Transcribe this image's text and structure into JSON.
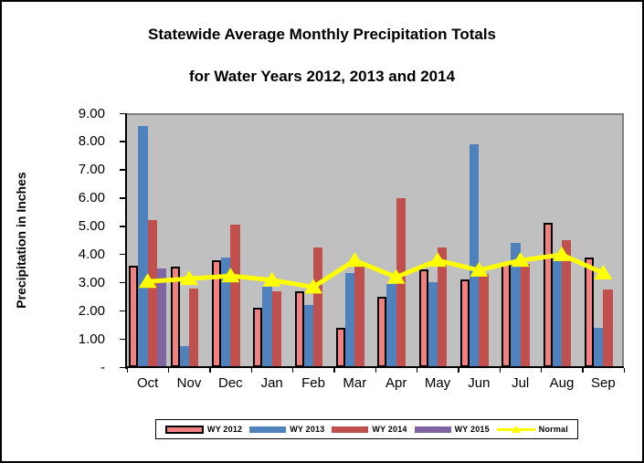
{
  "title": {
    "line1": "Statewide Average Monthly Precipitation Totals",
    "line2": "for Water Years 2012, 2013 and 2014"
  },
  "y_axis": {
    "title": "Precipitation in Inches",
    "tick_labels": [
      "9.00",
      "8.00",
      "7.00",
      "6.00",
      "5.00",
      "4.00",
      "3.00",
      "2.00",
      "1.00",
      "-"
    ]
  },
  "chart_data": {
    "type": "bar",
    "title": "Statewide Average Monthly Precipitation Totals for Water Years 2012, 2013 and 2014",
    "ylabel": "Precipitation in Inches",
    "xlabel": "",
    "ylim": [
      0,
      9
    ],
    "ytick_step": 1,
    "grid": false,
    "plot_bg": "#C0C0C0",
    "legend_position": "bottom",
    "categories": [
      "Oct",
      "Nov",
      "Dec",
      "Jan",
      "Feb",
      "Mar",
      "Apr",
      "May",
      "Jun",
      "Jul",
      "Aug",
      "Sep"
    ],
    "series": [
      {
        "name": "WY 2012",
        "type": "bar",
        "color": "#F28080",
        "border_color": "#000000",
        "values": [
          3.6,
          3.55,
          3.8,
          2.1,
          2.7,
          1.4,
          2.5,
          3.45,
          3.1,
          3.65,
          5.1,
          3.9
        ]
      },
      {
        "name": "WY 2013",
        "type": "bar",
        "color": "#4F81BD",
        "values": [
          8.55,
          0.75,
          3.9,
          2.85,
          2.2,
          3.35,
          2.95,
          3.0,
          7.9,
          4.4,
          3.9,
          1.4
        ]
      },
      {
        "name": "WY 2014",
        "type": "bar",
        "color": "#C0504D",
        "values": [
          5.2,
          2.8,
          5.05,
          2.7,
          4.25,
          3.6,
          6.0,
          4.25,
          3.3,
          3.65,
          4.5,
          2.75
        ]
      },
      {
        "name": "WY 2015",
        "type": "bar",
        "color": "#8064A2",
        "values": [
          3.5,
          null,
          null,
          null,
          null,
          null,
          null,
          null,
          null,
          null,
          null,
          null
        ]
      },
      {
        "name": "Normal",
        "type": "line",
        "color": "#FFFF00",
        "marker": "triangle-up",
        "values": [
          3.1,
          3.2,
          3.3,
          3.15,
          2.9,
          3.85,
          3.25,
          3.85,
          3.5,
          3.85,
          4.05,
          3.4
        ]
      }
    ]
  }
}
